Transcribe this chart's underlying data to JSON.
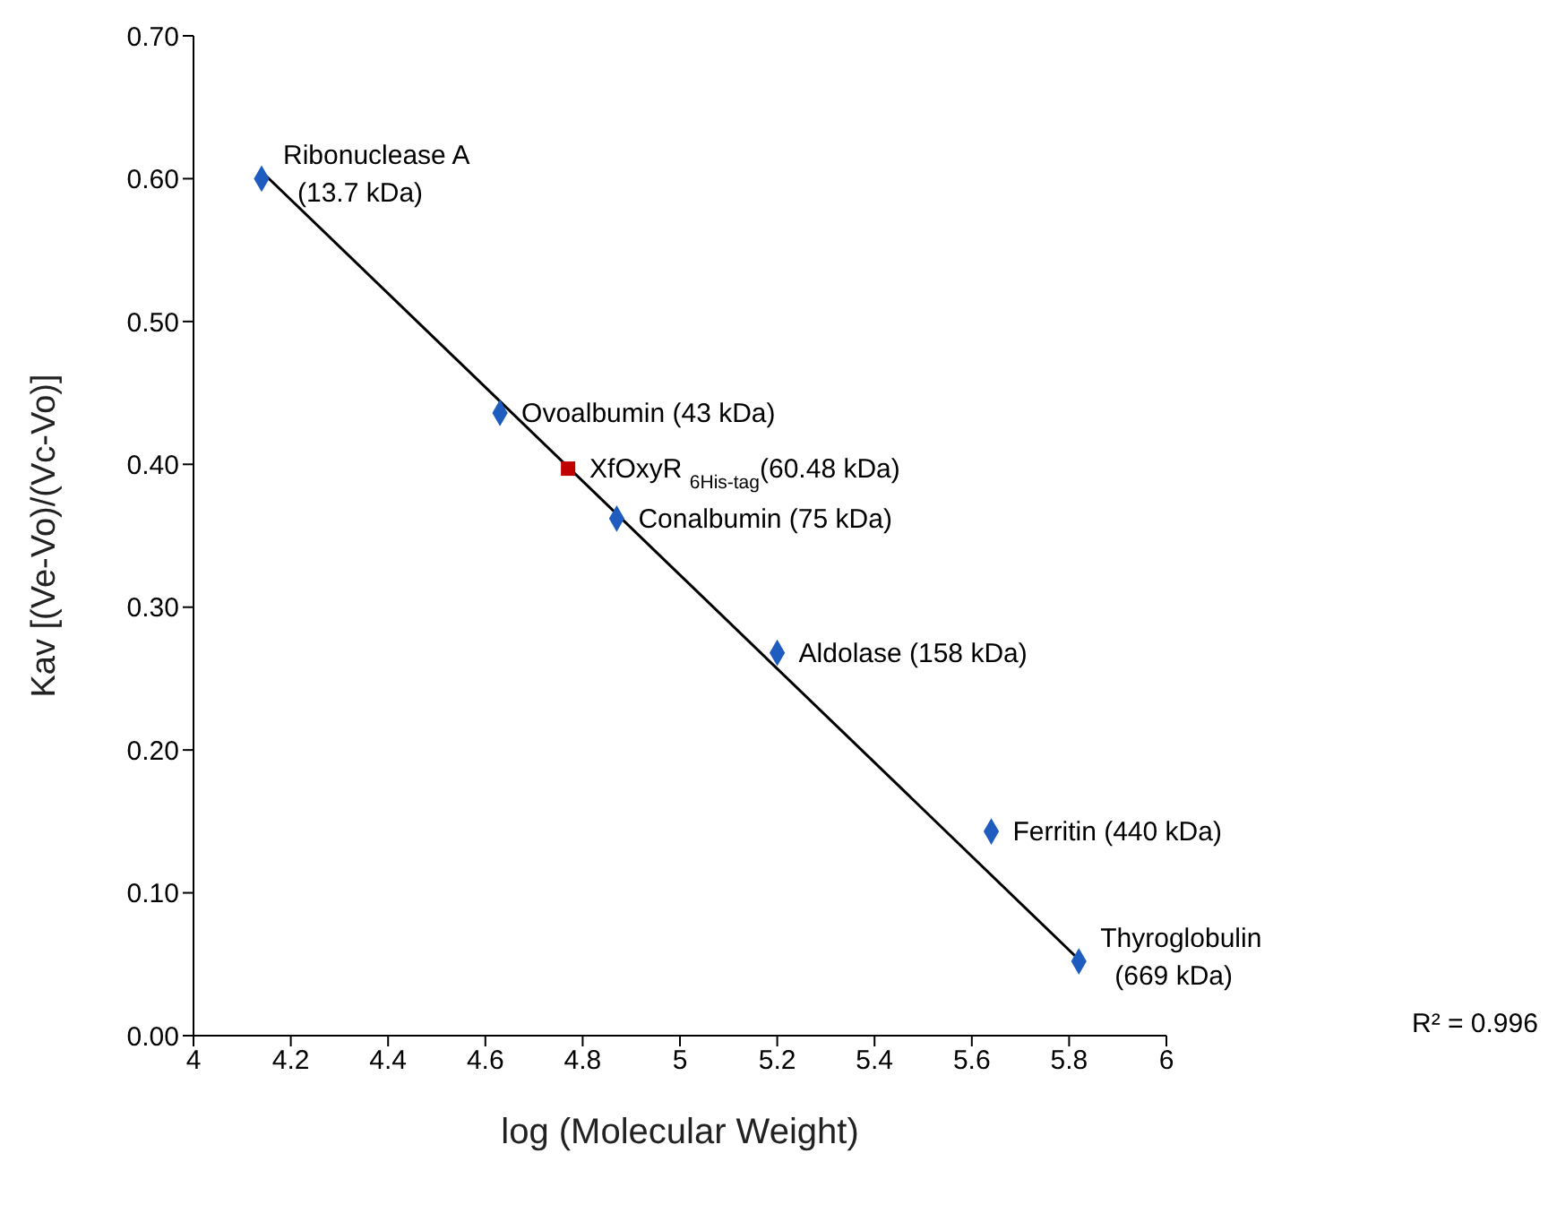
{
  "chart_data": {
    "type": "scatter",
    "xlabel": "log (Molecular Weight)",
    "ylabel": "Kav [(Ve-Vo)/(Vc-Vo)]",
    "series": [
      {
        "color": "#1f5cc0",
        "marker": "diamond",
        "x": [
          4.14,
          4.63,
          4.87,
          5.2,
          5.64,
          5.82
        ],
        "values": [
          0.6,
          0.436,
          0.362,
          0.268,
          0.143,
          0.052
        ]
      },
      {
        "color": "#c00000",
        "marker": "square",
        "x": [
          4.77
        ],
        "values": [
          0.397
        ]
      },
      {
        "type": "line",
        "color": "#000000",
        "marker": "none",
        "x": [
          4.14,
          5.83
        ],
        "values": [
          0.605,
          0.05
        ]
      }
    ],
    "xlim": [
      4,
      6
    ],
    "xticks": [
      4,
      4.2,
      4.4,
      4.6,
      4.8,
      5,
      5.2,
      5.4,
      5.6,
      5.8,
      6
    ],
    "ylim": [
      0,
      0.7
    ],
    "yticks": [
      {
        "value": 0,
        "label": "0.00"
      },
      {
        "value": 0.1,
        "label": "0.10"
      },
      {
        "value": 0.2,
        "label": "0.20"
      },
      {
        "value": 0.3,
        "label": "0.30"
      },
      {
        "value": 0.4,
        "label": "0.40"
      },
      {
        "value": 0.5,
        "label": "0.50"
      },
      {
        "value": 0.6,
        "label": "0.60"
      },
      {
        "value": 0.7,
        "label": "0.70"
      }
    ],
    "annotations": [
      {
        "text": "Ribonuclease A\n(13.7 kDa)",
        "x": 4.14,
        "y": 0.6
      },
      {
        "text": "Ovoalbumin (43 kDa)",
        "x": 4.63,
        "y": 0.436
      },
      {
        "text": "XfOxyR $_{6His-tag}$(60.48 kDa)",
        "x": 4.77,
        "y": 0.397
      },
      {
        "text": "Conalbumin (75 kDa)",
        "x": 4.87,
        "y": 0.362
      },
      {
        "text": "Aldolase (158 kDa)",
        "x": 5.2,
        "y": 0.268
      },
      {
        "text": "Ferritin (440 kDa)",
        "x": 5.64,
        "y": 0.143
      },
      {
        "text": "Thyroglobulin\n(669 kDa)",
        "x": 5.82,
        "y": 0.052
      },
      "R² = 0.996"
    ]
  }
}
